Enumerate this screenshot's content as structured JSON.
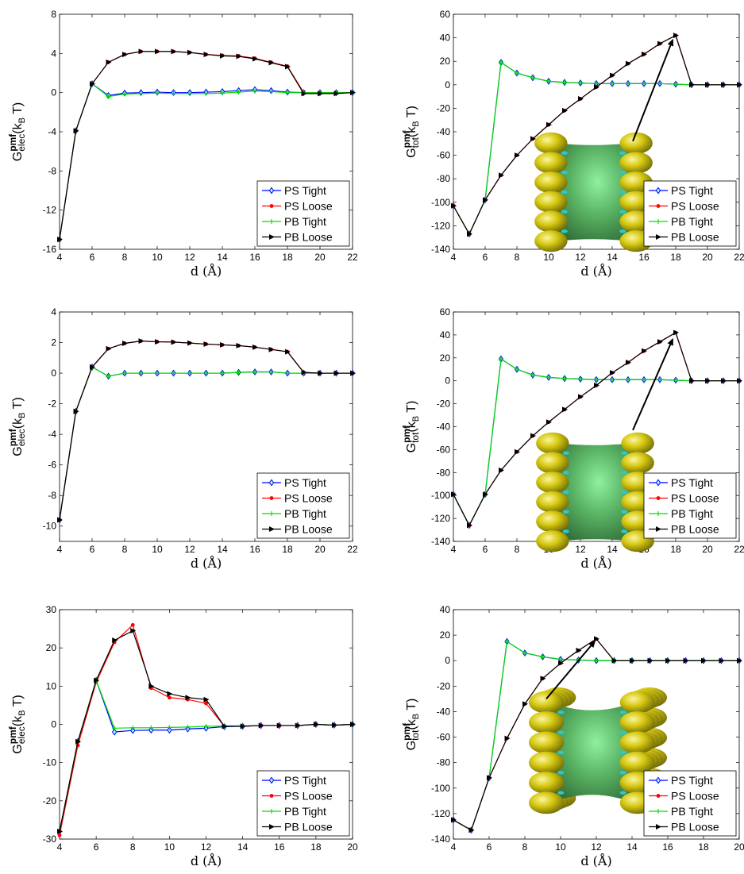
{
  "figure": {
    "legend_labels": [
      "PS Tight",
      "PS Loose",
      "PB Tight",
      "PB Loose"
    ],
    "series_colors": {
      "PS Tight": "#0000ff",
      "PS Loose": "#ff0000",
      "PB Tight": "#00dd00",
      "PB Loose": "#000000"
    },
    "markers": {
      "PS Tight": "diamond",
      "PS Loose": "dot",
      "PB Tight": "plus",
      "PB Loose": "right-triangle"
    },
    "inset_colors": {
      "beads": "#d6c812",
      "tube": "#58b062",
      "highlight": "#8ef0a0",
      "crevice": "#2fc7cf"
    }
  },
  "chart_data": [
    {
      "type": "line",
      "ylabel": {
        "main": "G",
        "sup": "pmf",
        "sub": "elec",
        "unit": "(k",
        "unit_sub": "B",
        "unit_end": " T)"
      },
      "xlabel": "d (Å)",
      "xlim": [
        4,
        22
      ],
      "ylim": [
        -16,
        8
      ],
      "xticks": [
        4,
        6,
        8,
        10,
        12,
        14,
        16,
        18,
        20,
        22
      ],
      "yticks": [
        -16,
        -12,
        -8,
        -4,
        0,
        4,
        8
      ],
      "x": [
        4,
        5,
        6,
        7,
        8,
        9,
        10,
        11,
        12,
        13,
        14,
        15,
        16,
        17,
        18,
        19,
        20,
        21,
        22
      ],
      "series": [
        {
          "name": "PS Tight",
          "values": [
            -15,
            -3.9,
            0.9,
            -0.3,
            -0.05,
            0,
            0.05,
            0,
            0,
            0.05,
            0.1,
            0.2,
            0.3,
            0.2,
            0.05,
            0,
            0,
            0,
            0
          ]
        },
        {
          "name": "PS Loose",
          "values": [
            -15,
            -3.9,
            0.9,
            3.1,
            3.9,
            4.2,
            4.2,
            4.2,
            4.1,
            3.9,
            3.8,
            3.75,
            3.5,
            3.1,
            2.7,
            0,
            0,
            0,
            0
          ]
        },
        {
          "name": "PB Tight",
          "values": [
            -15,
            -3.9,
            0.9,
            -0.4,
            -0.15,
            -0.1,
            -0.05,
            -0.1,
            -0.1,
            -0.1,
            -0.05,
            0.05,
            0.15,
            0.1,
            0,
            0,
            0,
            0,
            0
          ]
        },
        {
          "name": "PB Loose",
          "values": [
            -15,
            -3.9,
            0.9,
            3.1,
            3.9,
            4.2,
            4.2,
            4.2,
            4.1,
            3.9,
            3.75,
            3.7,
            3.45,
            3.05,
            2.65,
            -0.1,
            -0.1,
            -0.1,
            0
          ]
        }
      ]
    },
    {
      "type": "line",
      "ylabel": {
        "main": "G",
        "sup": "pmf",
        "sub": "tot",
        "unit": "(k",
        "unit_sub": "B",
        "unit_end": " T)"
      },
      "xlabel": "d (Å)",
      "xlim": [
        4,
        22
      ],
      "ylim": [
        -140,
        60
      ],
      "xticks": [
        4,
        6,
        8,
        10,
        12,
        14,
        16,
        18,
        20,
        22
      ],
      "yticks": [
        -140,
        -120,
        -100,
        -80,
        -60,
        -40,
        -20,
        0,
        20,
        40,
        60
      ],
      "x": [
        4,
        5,
        6,
        7,
        8,
        9,
        10,
        11,
        12,
        13,
        14,
        15,
        16,
        17,
        18,
        19,
        20,
        21,
        22
      ],
      "series": [
        {
          "name": "PS Tight",
          "values": [
            -103,
            -127,
            -98,
            19,
            10,
            6,
            3,
            2,
            1.5,
            1,
            1,
            1,
            1,
            1,
            0.5,
            0,
            0,
            0,
            0
          ]
        },
        {
          "name": "PS Loose",
          "values": [
            -103,
            -127,
            -98,
            -77,
            -60,
            -46,
            -34,
            -22,
            -12,
            -2,
            8,
            18,
            26,
            35,
            42,
            0,
            0,
            0,
            0
          ]
        },
        {
          "name": "PB Tight",
          "values": [
            -103,
            -127,
            -98,
            19,
            10,
            6,
            3,
            2,
            1.5,
            1,
            1,
            1,
            1,
            1,
            0.5,
            0,
            0,
            0,
            0
          ]
        },
        {
          "name": "PB Loose",
          "values": [
            -103,
            -127,
            -98,
            -77,
            -60,
            -46,
            -34,
            -22,
            -12,
            -2,
            8,
            18,
            26,
            35,
            42,
            0,
            0,
            0,
            0
          ]
        }
      ],
      "annotation_arrow": {
        "from": [
          15.3,
          -48
        ],
        "to": [
          17.8,
          38
        ]
      }
    },
    {
      "type": "line",
      "ylabel": {
        "main": "G",
        "sup": "pmf",
        "sub": "elec",
        "unit": "(k",
        "unit_sub": "B",
        "unit_end": " T)"
      },
      "xlabel": "d (Å)",
      "xlim": [
        4,
        22
      ],
      "ylim": [
        -11,
        4
      ],
      "xticks": [
        4,
        6,
        8,
        10,
        12,
        14,
        16,
        18,
        20,
        22
      ],
      "yticks": [
        -10,
        -8,
        -6,
        -4,
        -2,
        0,
        2,
        4
      ],
      "x": [
        4,
        5,
        6,
        7,
        8,
        9,
        10,
        11,
        12,
        13,
        14,
        15,
        16,
        17,
        18,
        19,
        20,
        21,
        22
      ],
      "series": [
        {
          "name": "PS Tight",
          "values": [
            -9.6,
            -2.5,
            0.4,
            -0.2,
            0,
            0,
            0,
            0,
            0,
            0,
            0,
            0.05,
            0.08,
            0.08,
            0,
            0,
            0,
            0,
            0
          ]
        },
        {
          "name": "PS Loose",
          "values": [
            -9.6,
            -2.5,
            0.4,
            1.6,
            1.95,
            2.1,
            2.05,
            2.03,
            1.97,
            1.9,
            1.85,
            1.8,
            1.7,
            1.55,
            1.4,
            0.05,
            0,
            0,
            0
          ]
        },
        {
          "name": "PB Tight",
          "values": [
            -9.6,
            -2.5,
            0.4,
            -0.2,
            0,
            0,
            0,
            0,
            0,
            0,
            0,
            0.05,
            0.08,
            0.08,
            0,
            0,
            0,
            0,
            0
          ]
        },
        {
          "name": "PB Loose",
          "values": [
            -9.6,
            -2.5,
            0.4,
            1.6,
            1.95,
            2.1,
            2.05,
            2.03,
            1.97,
            1.9,
            1.85,
            1.8,
            1.7,
            1.55,
            1.4,
            0.05,
            0,
            0,
            0
          ]
        }
      ]
    },
    {
      "type": "line",
      "ylabel": {
        "main": "G",
        "sup": "pmf",
        "sub": "tot",
        "unit": "(k",
        "unit_sub": "B",
        "unit_end": " T)"
      },
      "xlabel": "d (Å)",
      "xlim": [
        4,
        22
      ],
      "ylim": [
        -140,
        60
      ],
      "xticks": [
        4,
        6,
        8,
        10,
        12,
        14,
        16,
        18,
        20,
        22
      ],
      "yticks": [
        -140,
        -120,
        -100,
        -80,
        -60,
        -40,
        -20,
        0,
        20,
        40,
        60
      ],
      "x": [
        4,
        5,
        6,
        7,
        8,
        9,
        10,
        11,
        12,
        13,
        14,
        15,
        16,
        17,
        18,
        19,
        20,
        21,
        22
      ],
      "series": [
        {
          "name": "PS Tight",
          "values": [
            -99,
            -126,
            -99,
            19,
            10,
            5,
            3,
            2,
            1.5,
            1,
            1,
            1,
            1,
            1,
            0.5,
            0,
            0,
            0,
            0
          ]
        },
        {
          "name": "PS Loose",
          "values": [
            -99,
            -126,
            -99,
            -78,
            -62,
            -48,
            -36,
            -25,
            -14,
            -4,
            7,
            16,
            26,
            34,
            42,
            0,
            0,
            0,
            0
          ]
        },
        {
          "name": "PB Tight",
          "values": [
            -99,
            -126,
            -99,
            19,
            10,
            5,
            3,
            2,
            1.5,
            1,
            1,
            1,
            1,
            1,
            0.5,
            0,
            0,
            0,
            0
          ]
        },
        {
          "name": "PB Loose",
          "values": [
            -99,
            -126,
            -99,
            -78,
            -62,
            -48,
            -36,
            -25,
            -14,
            -4,
            7,
            16,
            26,
            34,
            42,
            0,
            0,
            0,
            0
          ]
        }
      ],
      "annotation_arrow": {
        "from": [
          15.3,
          -43
        ],
        "to": [
          17.8,
          36
        ]
      }
    },
    {
      "type": "line",
      "ylabel": {
        "main": "G",
        "sup": "pmf",
        "sub": "elec",
        "unit": "(k",
        "unit_sub": "B",
        "unit_end": " T)"
      },
      "xlabel": "d (Å)",
      "xlim": [
        4,
        20
      ],
      "ylim": [
        -30,
        30
      ],
      "xticks": [
        4,
        6,
        8,
        10,
        12,
        14,
        16,
        18,
        20
      ],
      "yticks": [
        -30,
        -20,
        -10,
        0,
        10,
        20,
        30
      ],
      "x": [
        4,
        5,
        6,
        7,
        8,
        9,
        10,
        11,
        12,
        13,
        14,
        15,
        16,
        17,
        18,
        19,
        20
      ],
      "series": [
        {
          "name": "PS Tight",
          "values": [
            -28,
            -4.5,
            11.5,
            -2,
            -1.6,
            -1.5,
            -1.5,
            -1.2,
            -1,
            -0.6,
            -0.5,
            -0.3,
            -0.3,
            -0.3,
            0,
            -0.2,
            0
          ]
        },
        {
          "name": "PS Loose",
          "values": [
            -29,
            -5.5,
            11,
            21.5,
            26,
            9.5,
            7,
            6.5,
            5.5,
            -0.5,
            -0.5,
            -0.3,
            -0.3,
            -0.3,
            0,
            -0.2,
            0
          ]
        },
        {
          "name": "PB Tight",
          "values": [
            -28,
            -4.5,
            11.5,
            -1,
            -0.9,
            -0.9,
            -0.8,
            -0.7,
            -0.5,
            -0.4,
            -0.4,
            -0.3,
            -0.3,
            -0.3,
            0,
            -0.2,
            0
          ]
        },
        {
          "name": "PB Loose",
          "values": [
            -28,
            -4.5,
            11.5,
            22,
            24.5,
            10,
            8,
            7,
            6.5,
            -0.5,
            -0.5,
            -0.3,
            -0.3,
            -0.3,
            0,
            -0.2,
            0
          ]
        }
      ]
    },
    {
      "type": "line",
      "ylabel": {
        "main": "G",
        "sup": "pmf",
        "sub": "tot",
        "unit": "(k",
        "unit_sub": "B",
        "unit_end": " T)"
      },
      "xlabel": "d (Å)",
      "xlim": [
        4,
        20
      ],
      "ylim": [
        -140,
        40
      ],
      "xticks": [
        4,
        6,
        8,
        10,
        12,
        14,
        16,
        18,
        20
      ],
      "yticks": [
        -140,
        -120,
        -100,
        -80,
        -60,
        -40,
        -20,
        0,
        20,
        40
      ],
      "x": [
        4,
        5,
        6,
        7,
        8,
        9,
        10,
        11,
        12,
        13,
        14,
        15,
        16,
        17,
        18,
        19,
        20
      ],
      "series": [
        {
          "name": "PS Tight",
          "values": [
            -125,
            -133,
            -92,
            15,
            6,
            3,
            1,
            0.5,
            0,
            0,
            0,
            0,
            0,
            0,
            0,
            0,
            0
          ]
        },
        {
          "name": "PS Loose",
          "values": [
            -125,
            -133,
            -92,
            -61,
            -34,
            -14,
            -2,
            8,
            17,
            0,
            0,
            0,
            0,
            0,
            0,
            0,
            0
          ]
        },
        {
          "name": "PB Tight",
          "values": [
            -125,
            -133,
            -92,
            15,
            6,
            3,
            1,
            0.5,
            0,
            0,
            0,
            0,
            0,
            0,
            0,
            0,
            0
          ]
        },
        {
          "name": "PB Loose",
          "values": [
            -125,
            -133,
            -92,
            -61,
            -34,
            -14,
            -2,
            8,
            17,
            0,
            0,
            0,
            0,
            0,
            0,
            0,
            0
          ]
        }
      ],
      "annotation_arrow": {
        "from": [
          9.2,
          -30
        ],
        "to": [
          11.9,
          15
        ]
      }
    }
  ]
}
